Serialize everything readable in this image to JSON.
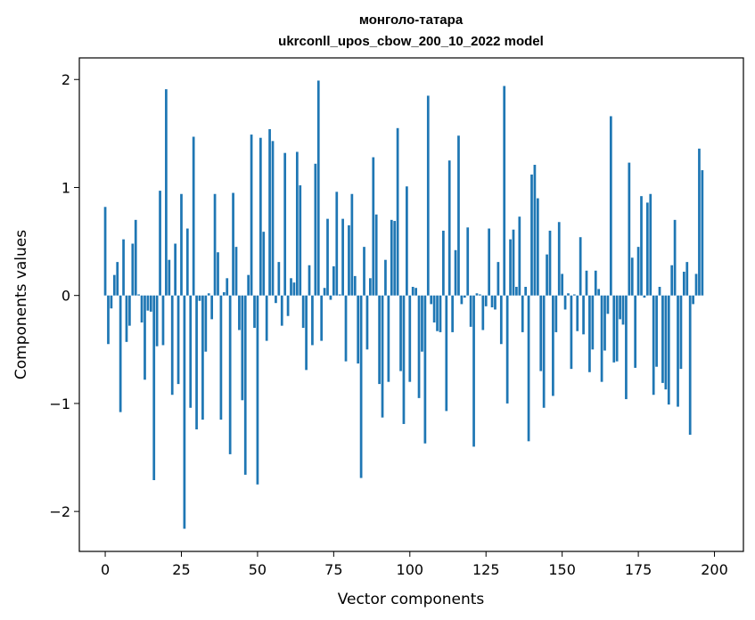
{
  "chart_data": {
    "type": "bar",
    "title": "монголо-татара",
    "subtitle": "ukrconll_upos_cbow_200_10_2022 model",
    "xlabel": "Vector components",
    "ylabel": "Components values",
    "xlim": [
      -8.5,
      209.5
    ],
    "ylim": [
      -2.37,
      2.2
    ],
    "xticks": [
      0,
      25,
      50,
      75,
      100,
      125,
      150,
      175,
      200
    ],
    "xtick_labels": [
      "0",
      "25",
      "50",
      "75",
      "100",
      "125",
      "150",
      "175",
      "200"
    ],
    "yticks": [
      -2,
      -1,
      0,
      1,
      2
    ],
    "ytick_labels": [
      "−2",
      "−1",
      "0",
      "1",
      "2"
    ],
    "grid": false,
    "bar_color": "#1f77b4",
    "values": [
      0.82,
      -0.45,
      -0.12,
      0.19,
      0.31,
      -1.08,
      0.52,
      -0.43,
      -0.28,
      0.48,
      0.7,
      0.01,
      -0.25,
      -0.78,
      -0.14,
      -0.15,
      -1.71,
      -0.47,
      0.97,
      -0.46,
      1.91,
      0.33,
      -0.92,
      0.48,
      -0.82,
      0.94,
      -2.16,
      0.62,
      -1.04,
      1.47,
      -1.24,
      -0.05,
      -1.15,
      -0.52,
      0.02,
      -0.22,
      0.94,
      0.4,
      -1.15,
      0.03,
      0.16,
      -1.47,
      0.95,
      0.45,
      -0.32,
      -0.97,
      -1.66,
      0.19,
      1.49,
      -0.3,
      -1.75,
      1.46,
      0.59,
      -0.42,
      1.54,
      1.43,
      -0.07,
      0.31,
      -0.28,
      1.32,
      -0.19,
      0.16,
      0.12,
      1.33,
      1.02,
      -0.3,
      -0.69,
      0.28,
      -0.46,
      1.22,
      1.99,
      -0.42,
      0.07,
      0.71,
      -0.04,
      0.27,
      0.96,
      0.01,
      0.71,
      -0.61,
      0.65,
      0.94,
      0.18,
      -0.63,
      -1.69,
      0.45,
      -0.5,
      0.16,
      1.28,
      0.75,
      -0.82,
      -1.13,
      0.33,
      -0.8,
      0.7,
      0.69,
      1.55,
      -0.7,
      -1.19,
      1.01,
      -0.8,
      0.08,
      0.07,
      -0.95,
      -0.52,
      -1.37,
      1.85,
      -0.08,
      -0.25,
      -0.33,
      -0.34,
      0.6,
      -1.07,
      1.25,
      -0.34,
      0.42,
      1.48,
      -0.08,
      -0.02,
      0.63,
      -0.29,
      -1.4,
      0.02,
      0.01,
      -0.32,
      -0.1,
      0.62,
      -0.11,
      -0.13,
      0.31,
      -0.45,
      1.94,
      -1.0,
      0.52,
      0.61,
      0.08,
      0.73,
      -0.34,
      0.08,
      -1.35,
      1.12,
      1.21,
      0.9,
      -0.7,
      -1.04,
      0.38,
      0.6,
      -0.93,
      -0.34,
      0.68,
      0.2,
      -0.13,
      0.02,
      -0.68,
      0.01,
      -0.33,
      0.54,
      -0.36,
      0.23,
      -0.71,
      -0.5,
      0.23,
      0.06,
      -0.8,
      -0.51,
      -0.17,
      1.66,
      -0.62,
      -0.61,
      -0.22,
      -0.27,
      -0.96,
      1.23,
      0.35,
      -0.67,
      0.45,
      0.92,
      -0.02,
      0.86,
      0.94,
      -0.92,
      -0.66,
      0.08,
      -0.81,
      -0.87,
      -1.01,
      0.28,
      0.7,
      -1.03,
      -0.68,
      0.22,
      0.31,
      -1.29,
      -0.08,
      0.2,
      1.36,
      1.16
    ]
  }
}
